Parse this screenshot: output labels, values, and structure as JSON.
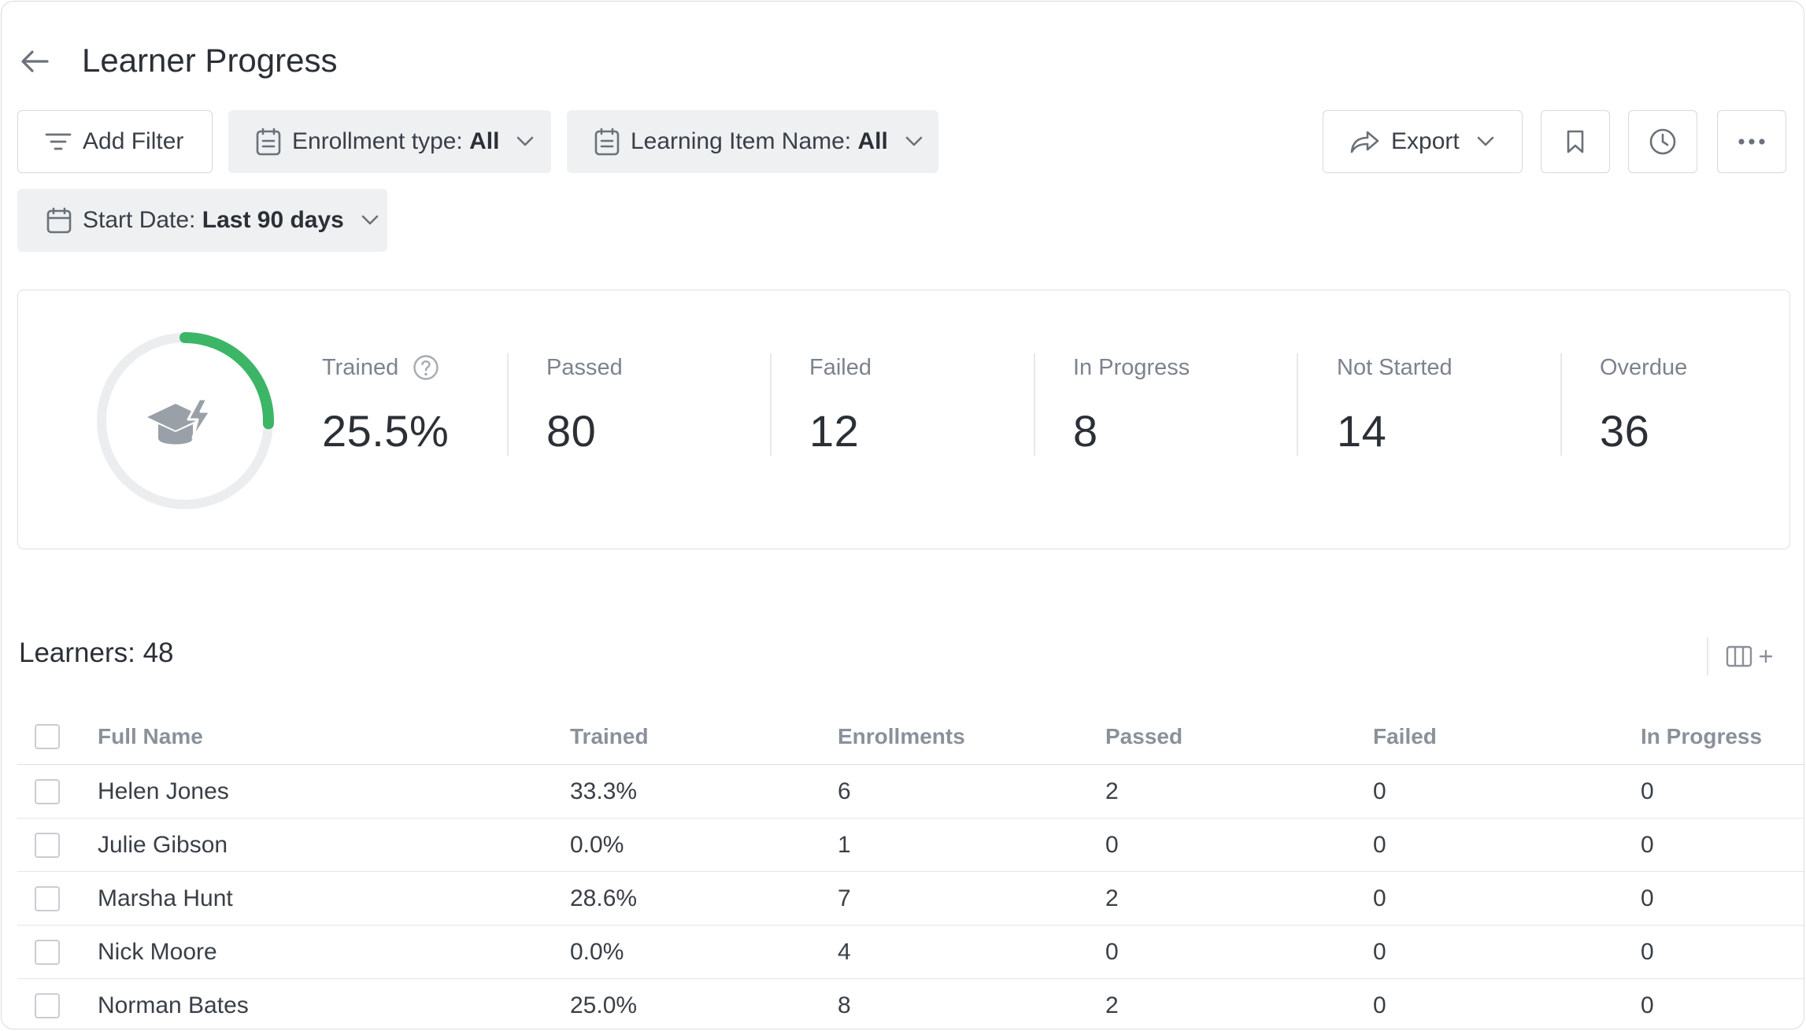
{
  "header": {
    "title": "Learner Progress"
  },
  "filters": {
    "add_filter": "Add Filter",
    "enrollment_type": {
      "label": "Enrollment type:",
      "value": "All"
    },
    "learning_item": {
      "label": "Learning Item Name:",
      "value": "All"
    },
    "start_date": {
      "label": "Start Date:",
      "value": "Last 90 days"
    }
  },
  "toolbar": {
    "export": "Export"
  },
  "summary": {
    "trained_label": "Trained",
    "trained_value": "25.5%",
    "trained_fraction": 0.255,
    "accent": "#3cb567",
    "stats": [
      {
        "label": "Passed",
        "value": "80"
      },
      {
        "label": "Failed",
        "value": "12"
      },
      {
        "label": "In Progress",
        "value": "8"
      },
      {
        "label": "Not Started",
        "value": "14"
      },
      {
        "label": "Overdue",
        "value": "36"
      }
    ]
  },
  "learners": {
    "title": "Learners: 48",
    "columns": [
      "Full Name",
      "Trained",
      "Enrollments",
      "Passed",
      "Failed",
      "In Progress"
    ],
    "rows": [
      [
        "Helen Jones",
        "33.3%",
        "6",
        "2",
        "0",
        "0"
      ],
      [
        "Julie Gibson",
        "0.0%",
        "1",
        "0",
        "0",
        "0"
      ],
      [
        "Marsha Hunt",
        "28.6%",
        "7",
        "2",
        "0",
        "0"
      ],
      [
        "Nick Moore",
        "0.0%",
        "4",
        "0",
        "0",
        "0"
      ],
      [
        "Norman Bates",
        "25.0%",
        "8",
        "2",
        "0",
        "0"
      ]
    ]
  }
}
